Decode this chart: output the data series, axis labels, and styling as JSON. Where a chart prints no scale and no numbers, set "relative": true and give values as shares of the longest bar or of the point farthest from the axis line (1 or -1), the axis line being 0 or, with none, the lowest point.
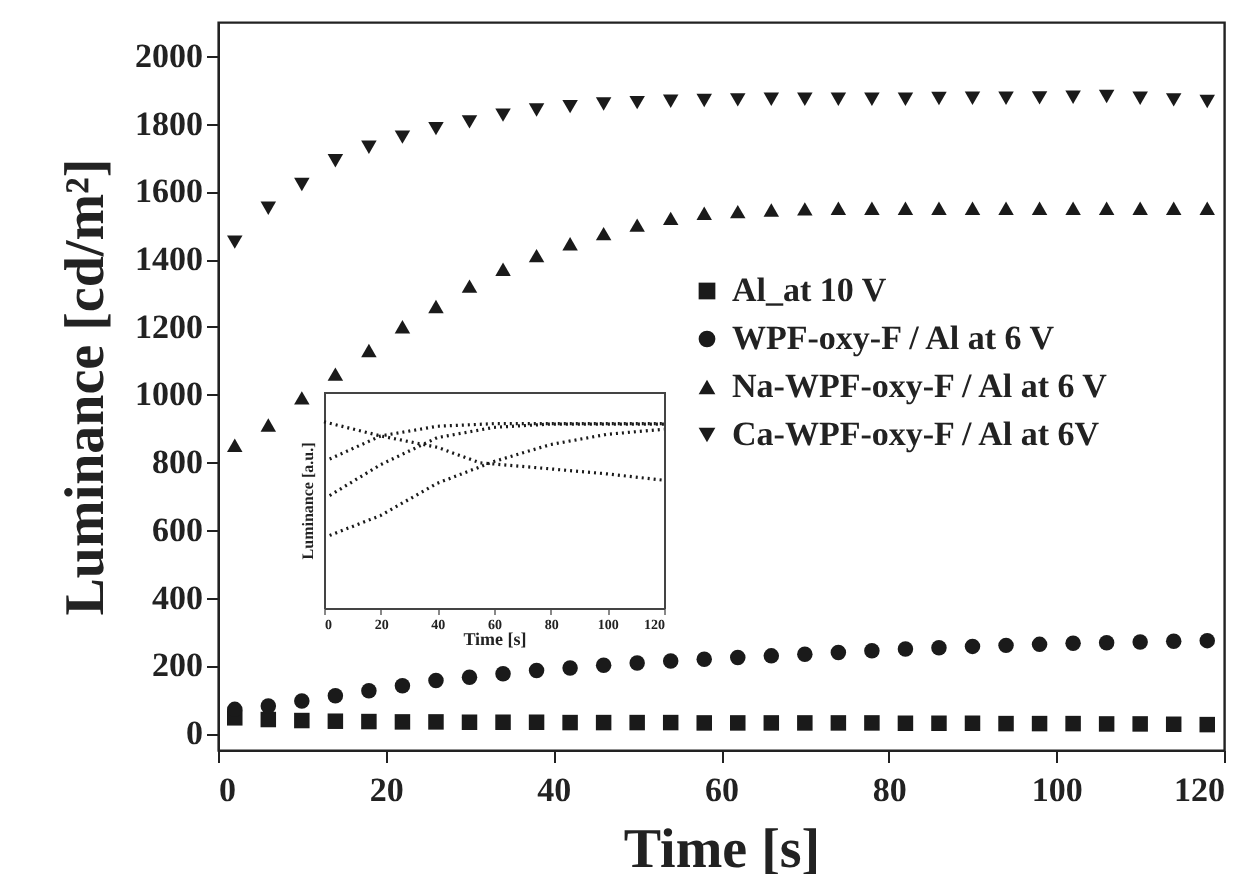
{
  "chart_data": [
    {
      "type": "scatter",
      "xlabel": "Time [s]",
      "ylabel": "Luminance [cd/m²]",
      "xlim": [
        0,
        120
      ],
      "ylim": [
        -50,
        2100
      ],
      "xticks": [
        0,
        20,
        40,
        60,
        80,
        100,
        120
      ],
      "yticks": [
        0,
        200,
        400,
        600,
        800,
        1000,
        1200,
        1400,
        1600,
        1800,
        2000
      ],
      "legend": "right",
      "grid": false,
      "x": [
        2,
        6,
        10,
        14,
        18,
        22,
        26,
        30,
        34,
        38,
        42,
        46,
        50,
        54,
        58,
        62,
        66,
        70,
        74,
        78,
        82,
        86,
        90,
        94,
        98,
        102,
        106,
        110,
        114,
        118
      ],
      "series": [
        {
          "name": "Al_at 10 V",
          "color": "#1a1a1a",
          "marker": "square",
          "values": [
            45,
            40,
            37,
            35,
            34,
            33,
            33,
            32,
            32,
            32,
            31,
            31,
            31,
            31,
            30,
            30,
            30,
            30,
            30,
            30,
            29,
            29,
            29,
            28,
            28,
            28,
            27,
            27,
            26,
            25
          ]
        },
        {
          "name": "WPF-oxy-F / Al at 6 V",
          "color": "#1a1a1a",
          "marker": "circle",
          "values": [
            70,
            80,
            95,
            110,
            125,
            140,
            155,
            165,
            175,
            185,
            192,
            200,
            207,
            213,
            218,
            223,
            228,
            233,
            238,
            243,
            248,
            252,
            256,
            259,
            262,
            265,
            267,
            269,
            271,
            273
          ]
        },
        {
          "name": "Na-WPF-oxy-F / Al at 6 V",
          "color": "#1a1a1a",
          "marker": "triangle",
          "values": [
            850,
            910,
            990,
            1060,
            1130,
            1200,
            1260,
            1320,
            1370,
            1410,
            1445,
            1475,
            1500,
            1520,
            1535,
            1540,
            1545,
            1548,
            1550,
            1550,
            1550,
            1550,
            1550,
            1550,
            1550,
            1550,
            1550,
            1550,
            1550,
            1550
          ]
        },
        {
          "name": "Ca-WPF-oxy-F / Al at 6V",
          "color": "#1a1a1a",
          "marker": "triangle-down",
          "values": [
            1450,
            1550,
            1620,
            1690,
            1730,
            1760,
            1785,
            1805,
            1825,
            1840,
            1850,
            1858,
            1862,
            1866,
            1868,
            1870,
            1872,
            1872,
            1872,
            1872,
            1872,
            1874,
            1875,
            1875,
            1876,
            1878,
            1880,
            1875,
            1870,
            1865
          ]
        }
      ]
    },
    {
      "type": "line",
      "relative": true,
      "xlabel": "Time [s]",
      "ylabel": "Luminance [a.u.]",
      "xlim": [
        0,
        120
      ],
      "xticks": [
        0,
        20,
        40,
        60,
        80,
        100,
        120
      ],
      "tick_labels": "x",
      "line_style": "dotted",
      "series": [
        {
          "color": "#1a1a1a",
          "x": [
            0,
            20,
            40,
            55,
            80,
            100,
            120
          ],
          "values": [
            1.0,
            0.924,
            0.863,
            0.78,
            0.747,
            0.72,
            0.686
          ]
        },
        {
          "color": "#1a1a1a",
          "x": [
            2,
            20,
            40,
            60,
            120
          ],
          "values": [
            0.8,
            0.924,
            0.976,
            0.99,
            0.99
          ]
        },
        {
          "color": "#1a1a1a",
          "x": [
            2,
            20,
            40,
            60,
            80,
            120
          ],
          "values": [
            0.604,
            0.77,
            0.915,
            0.97,
            0.988,
            0.988
          ]
        },
        {
          "color": "#1a1a1a",
          "x": [
            2,
            20,
            40,
            60,
            80,
            100,
            120
          ],
          "values": [
            0.39,
            0.497,
            0.67,
            0.787,
            0.878,
            0.933,
            0.96
          ]
        }
      ]
    }
  ]
}
